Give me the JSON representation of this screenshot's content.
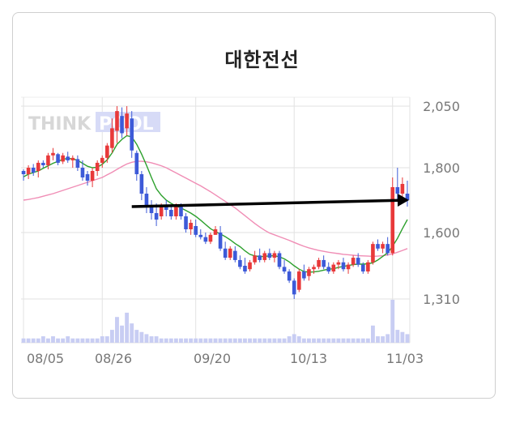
{
  "stock_name": "대한전선",
  "watermark": {
    "part1": "THINK",
    "part2": "POOL"
  },
  "chart_data": {
    "type": "candlestick",
    "title": "대한전선",
    "x_tick_labels": [
      "08/05",
      "08/26",
      "09/20",
      "10/13",
      "11/03"
    ],
    "y_tick_labels": [
      "2,050",
      "1,800",
      "1,600",
      "1,310"
    ],
    "y_ticks": [
      2050,
      1800,
      1600,
      1310
    ],
    "ylim": [
      1310,
      2050
    ],
    "grid": true,
    "colors": {
      "up": "#e8393a",
      "down": "#3d5ad8",
      "ma_short": "#2ca02c",
      "ma_long": "#f08db5",
      "volume": "#c8cdf3",
      "arrow": "#000000"
    },
    "candles": [
      [
        1790,
        1795,
        1760,
        1780
      ],
      [
        1780,
        1810,
        1765,
        1800
      ],
      [
        1800,
        1815,
        1775,
        1785
      ],
      [
        1790,
        1830,
        1770,
        1820
      ],
      [
        1820,
        1830,
        1800,
        1810
      ],
      [
        1810,
        1860,
        1795,
        1850
      ],
      [
        1850,
        1880,
        1830,
        1860
      ],
      [
        1855,
        1860,
        1810,
        1820
      ],
      [
        1825,
        1860,
        1815,
        1850
      ],
      [
        1845,
        1865,
        1820,
        1830
      ],
      [
        1830,
        1850,
        1800,
        1840
      ],
      [
        1835,
        1850,
        1790,
        1800
      ],
      [
        1800,
        1830,
        1760,
        1770
      ],
      [
        1780,
        1790,
        1745,
        1760
      ],
      [
        1760,
        1800,
        1740,
        1790
      ],
      [
        1790,
        1830,
        1775,
        1820
      ],
      [
        1820,
        1850,
        1800,
        1840
      ],
      [
        1840,
        1900,
        1820,
        1890
      ],
      [
        1880,
        2000,
        1860,
        1960
      ],
      [
        1950,
        2050,
        1900,
        2030
      ],
      [
        2010,
        2045,
        1920,
        1940
      ],
      [
        1960,
        2050,
        1930,
        2020
      ],
      [
        2000,
        2030,
        1840,
        1870
      ],
      [
        1860,
        1870,
        1760,
        1780
      ],
      [
        1780,
        1790,
        1700,
        1720
      ],
      [
        1720,
        1740,
        1660,
        1680
      ],
      [
        1680,
        1700,
        1640,
        1660
      ],
      [
        1660,
        1690,
        1620,
        1640
      ],
      [
        1650,
        1690,
        1640,
        1680
      ],
      [
        1680,
        1700,
        1650,
        1670
      ],
      [
        1670,
        1680,
        1640,
        1650
      ],
      [
        1650,
        1690,
        1640,
        1680
      ],
      [
        1680,
        1690,
        1640,
        1650
      ],
      [
        1650,
        1660,
        1600,
        1610
      ],
      [
        1610,
        1640,
        1590,
        1630
      ],
      [
        1620,
        1640,
        1580,
        1590
      ],
      [
        1590,
        1610,
        1570,
        1580
      ],
      [
        1580,
        1600,
        1550,
        1560
      ],
      [
        1560,
        1600,
        1550,
        1590
      ],
      [
        1590,
        1620,
        1590,
        1610
      ],
      [
        1600,
        1620,
        1520,
        1530
      ],
      [
        1530,
        1560,
        1480,
        1490
      ],
      [
        1490,
        1540,
        1480,
        1530
      ],
      [
        1520,
        1540,
        1470,
        1480
      ],
      [
        1480,
        1500,
        1440,
        1450
      ],
      [
        1455,
        1490,
        1420,
        1430
      ],
      [
        1440,
        1480,
        1430,
        1470
      ],
      [
        1470,
        1520,
        1460,
        1500
      ],
      [
        1500,
        1530,
        1470,
        1480
      ],
      [
        1480,
        1520,
        1470,
        1510
      ],
      [
        1510,
        1530,
        1480,
        1490
      ],
      [
        1490,
        1520,
        1470,
        1510
      ],
      [
        1510,
        1520,
        1440,
        1450
      ],
      [
        1450,
        1480,
        1420,
        1430
      ],
      [
        1430,
        1440,
        1380,
        1390
      ],
      [
        1390,
        1400,
        1310,
        1330
      ],
      [
        1350,
        1440,
        1340,
        1430
      ],
      [
        1430,
        1460,
        1390,
        1400
      ],
      [
        1410,
        1450,
        1390,
        1440
      ],
      [
        1440,
        1460,
        1420,
        1450
      ],
      [
        1450,
        1490,
        1440,
        1480
      ],
      [
        1480,
        1500,
        1440,
        1450
      ],
      [
        1450,
        1470,
        1420,
        1430
      ],
      [
        1430,
        1470,
        1420,
        1460
      ],
      [
        1460,
        1480,
        1440,
        1470
      ],
      [
        1470,
        1490,
        1430,
        1440
      ],
      [
        1440,
        1470,
        1420,
        1460
      ],
      [
        1460,
        1500,
        1450,
        1490
      ],
      [
        1490,
        1510,
        1450,
        1460
      ],
      [
        1460,
        1470,
        1420,
        1430
      ],
      [
        1430,
        1480,
        1420,
        1470
      ],
      [
        1470,
        1560,
        1460,
        1550
      ],
      [
        1550,
        1570,
        1520,
        1530
      ],
      [
        1530,
        1560,
        1510,
        1550
      ],
      [
        1550,
        1580,
        1500,
        1510
      ],
      [
        1510,
        1770,
        1500,
        1740
      ],
      [
        1740,
        1800,
        1700,
        1720
      ],
      [
        1720,
        1770,
        1690,
        1750
      ],
      [
        1720,
        1760,
        1680,
        1700
      ]
    ],
    "ma_short": [
      1772,
      1780,
      1785,
      1790,
      1798,
      1808,
      1818,
      1826,
      1834,
      1838,
      1836,
      1830,
      1818,
      1806,
      1800,
      1802,
      1814,
      1832,
      1860,
      1895,
      1915,
      1930,
      1925,
      1895,
      1855,
      1810,
      1770,
      1735,
      1715,
      1700,
      1690,
      1682,
      1676,
      1668,
      1660,
      1650,
      1638,
      1625,
      1612,
      1603,
      1594,
      1582,
      1568,
      1552,
      1538,
      1520,
      1505,
      1498,
      1495,
      1496,
      1498,
      1499,
      1494,
      1485,
      1472,
      1455,
      1440,
      1430,
      1427,
      1428,
      1431,
      1436,
      1440,
      1442,
      1448,
      1452,
      1456,
      1460,
      1462,
      1462,
      1464,
      1468,
      1480,
      1496,
      1512,
      1540,
      1575,
      1612,
      1640
    ],
    "ma_long": [
      1700,
      1702,
      1705,
      1708,
      1712,
      1716,
      1720,
      1725,
      1730,
      1735,
      1740,
      1745,
      1750,
      1755,
      1760,
      1765,
      1770,
      1778,
      1786,
      1795,
      1805,
      1815,
      1822,
      1826,
      1826,
      1824,
      1820,
      1814,
      1808,
      1800,
      1792,
      1784,
      1776,
      1768,
      1760,
      1752,
      1744,
      1735,
      1726,
      1716,
      1706,
      1696,
      1686,
      1676,
      1664,
      1652,
      1640,
      1628,
      1617,
      1607,
      1598,
      1590,
      1582,
      1574,
      1566,
      1557,
      1548,
      1540,
      1533,
      1527,
      1522,
      1518,
      1514,
      1511,
      1508,
      1505,
      1503,
      1501,
      1499,
      1498,
      1497,
      1496,
      1497,
      1499,
      1502,
      1507,
      1514,
      1522,
      1530
    ],
    "volume": [
      2,
      2,
      2,
      2,
      3,
      2,
      3,
      2,
      2,
      3,
      2,
      2,
      2,
      2,
      2,
      2,
      3,
      3,
      6,
      12,
      8,
      14,
      9,
      6,
      5,
      4,
      3,
      3,
      2,
      2,
      2,
      2,
      2,
      2,
      2,
      2,
      2,
      2,
      2,
      2,
      2,
      2,
      2,
      2,
      2,
      2,
      2,
      2,
      2,
      2,
      2,
      2,
      2,
      2,
      3,
      4,
      3,
      2,
      2,
      2,
      2,
      2,
      2,
      2,
      2,
      2,
      2,
      2,
      2,
      2,
      2,
      8,
      3,
      3,
      4,
      20,
      6,
      5,
      4
    ],
    "arrow": {
      "from_value": 1680,
      "to_value": 1700,
      "from_index": 22,
      "to_index": 78
    }
  }
}
